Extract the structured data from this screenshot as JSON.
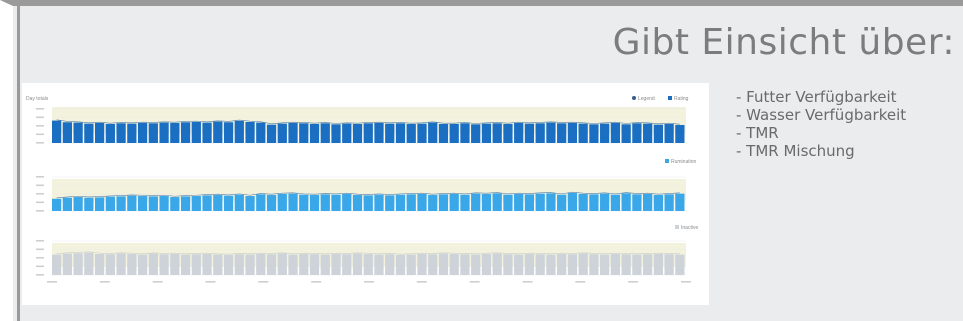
{
  "slide": {
    "title": "Gibt Einsicht über:",
    "bullets": [
      "- Futter Verfügbarkeit",
      "- Wasser Verfügbarkeit",
      "- TMR",
      "- TMR Mischung"
    ]
  },
  "colors": {
    "series_dark": "#1b6fc2",
    "series_mid": "#3aa8e8",
    "series_grey": "#cdd3d9",
    "band": "#f3f2dc"
  },
  "chart_data": [
    {
      "type": "bar",
      "title": "Day totals",
      "legend": [
        "Legend",
        "Rating"
      ],
      "values": [
        6.6,
        6.1,
        6.0,
        5.7,
        5.9,
        5.6,
        5.8,
        5.7,
        5.9,
        5.8,
        6.0,
        5.9,
        6.1,
        6.2,
        6.0,
        6.3,
        6.1,
        6.5,
        6.2,
        6.0,
        5.4,
        5.7,
        5.9,
        5.8,
        5.6,
        5.8,
        5.5,
        5.7,
        5.6,
        5.8,
        5.9,
        5.7,
        5.8,
        5.6,
        5.7,
        6.0,
        5.6,
        5.6,
        5.8,
        5.5,
        5.7,
        5.8,
        5.6,
        5.9,
        5.7,
        5.8,
        6.0,
        5.8,
        5.9,
        5.7,
        5.5,
        5.7,
        5.9,
        5.5,
        5.8,
        5.7,
        5.4,
        5.6,
        5.3
      ],
      "ylim": [
        0,
        10
      ]
    },
    {
      "type": "bar",
      "legend": [
        "Rumination"
      ],
      "values": [
        3.6,
        3.9,
        4.1,
        3.9,
        4.0,
        4.2,
        4.3,
        4.5,
        4.4,
        4.3,
        4.4,
        4.1,
        4.3,
        4.4,
        4.6,
        4.7,
        4.5,
        4.8,
        4.4,
        4.9,
        4.7,
        5.0,
        5.1,
        4.8,
        4.7,
        4.9,
        4.8,
        5.0,
        4.7,
        4.6,
        4.8,
        4.6,
        4.8,
        4.9,
        5.0,
        4.7,
        4.9,
        5.0,
        4.8,
        5.1,
        5.0,
        5.2,
        4.8,
        5.0,
        4.9,
        5.1,
        5.2,
        4.8,
        5.3,
        5.0,
        4.9,
        5.1,
        4.8,
        5.2,
        4.9,
        5.0,
        4.7,
        4.9,
        5.1
      ],
      "ylim": [
        0,
        10
      ]
    },
    {
      "type": "bar",
      "legend": [
        "Inactive"
      ],
      "values": [
        6.0,
        6.3,
        6.4,
        6.6,
        6.2,
        6.1,
        6.3,
        6.2,
        6.0,
        6.3,
        6.1,
        6.2,
        6.0,
        6.1,
        6.2,
        6.0,
        5.9,
        6.1,
        6.0,
        6.2,
        6.1,
        6.3,
        6.0,
        6.2,
        6.1,
        6.0,
        6.2,
        6.1,
        6.3,
        6.2,
        6.0,
        6.1,
        5.9,
        6.0,
        6.2,
        6.1,
        6.3,
        6.2,
        6.1,
        6.0,
        6.2,
        6.3,
        6.1,
        6.0,
        6.2,
        6.1,
        6.0,
        6.2,
        6.1,
        6.3,
        6.1,
        6.0,
        6.2,
        6.1,
        6.0,
        6.1,
        6.2,
        6.1,
        6.0
      ],
      "ylim": [
        0,
        10
      ]
    }
  ]
}
